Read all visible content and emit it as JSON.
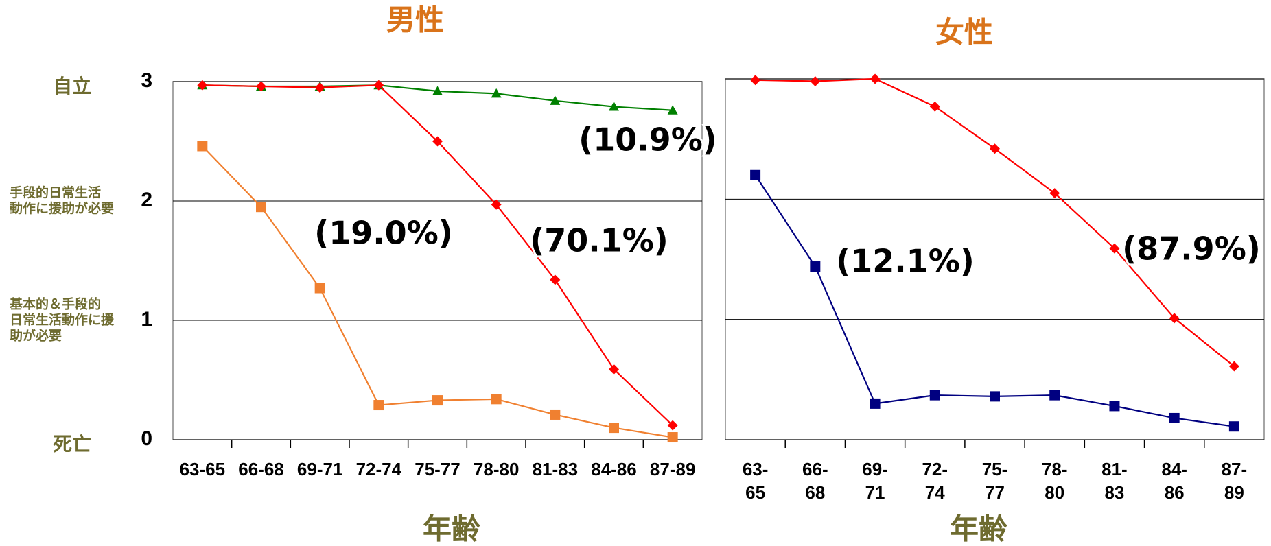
{
  "chart_data": [
    {
      "type": "line",
      "title": "男性",
      "xlabel": "年齢",
      "categories": [
        "63-65",
        "66-68",
        "69-71",
        "72-74",
        "75-77",
        "78-80",
        "81-83",
        "84-86",
        "87-89"
      ],
      "series": [
        {
          "color": "#008000",
          "marker": "triangle",
          "values": [
            2.97,
            2.96,
            2.96,
            2.97,
            2.92,
            2.9,
            2.84,
            2.79,
            2.76
          ]
        },
        {
          "color": "#ff0000",
          "marker": "diamond",
          "values": [
            2.97,
            2.96,
            2.95,
            2.97,
            2.5,
            1.97,
            1.34,
            0.59,
            0.12
          ]
        },
        {
          "color": "#f08030",
          "marker": "square",
          "values": [
            2.46,
            1.95,
            1.27,
            0.29,
            0.33,
            0.34,
            0.21,
            0.1,
            0.02
          ]
        }
      ],
      "ylim": [
        0,
        3
      ],
      "yticks": [
        0,
        1,
        2,
        3
      ],
      "show_ytick_labels": true,
      "grid": true,
      "y_category_labels": [
        {
          "value": 3,
          "lines": [
            "自立"
          ]
        },
        {
          "value": 2,
          "lines": [
            "手段的日常生活",
            "動作に援助が必要"
          ]
        },
        {
          "value": 1,
          "lines": [
            "基本的＆手段的",
            "日常生活動作に援",
            "助が必要"
          ]
        },
        {
          "value": 0,
          "lines": [
            "死亡"
          ]
        }
      ],
      "annotations": [
        "(19.0%)",
        "(70.1%)",
        "(10.9%)"
      ]
    },
    {
      "type": "line",
      "title": "女性",
      "xlabel": "年齢",
      "categories": [
        "63-65",
        "66-68",
        "69-71",
        "72-74",
        "75-77",
        "78-80",
        "81-83",
        "84-86",
        "87-89"
      ],
      "series": [
        {
          "color": "#ff0000",
          "marker": "diamond",
          "values": [
            2.99,
            2.98,
            3.0,
            2.77,
            2.42,
            2.05,
            1.59,
            1.01,
            0.61
          ]
        },
        {
          "color": "#000080",
          "marker": "square",
          "values": [
            2.2,
            1.44,
            0.3,
            0.37,
            0.36,
            0.37,
            0.28,
            0.18,
            0.11
          ]
        }
      ],
      "ylim": [
        0,
        3
      ],
      "yticks": [
        0,
        1,
        2,
        3
      ],
      "show_ytick_labels": false,
      "grid": true,
      "annotations": [
        "(12.1%)",
        "(87.9%)"
      ]
    }
  ]
}
